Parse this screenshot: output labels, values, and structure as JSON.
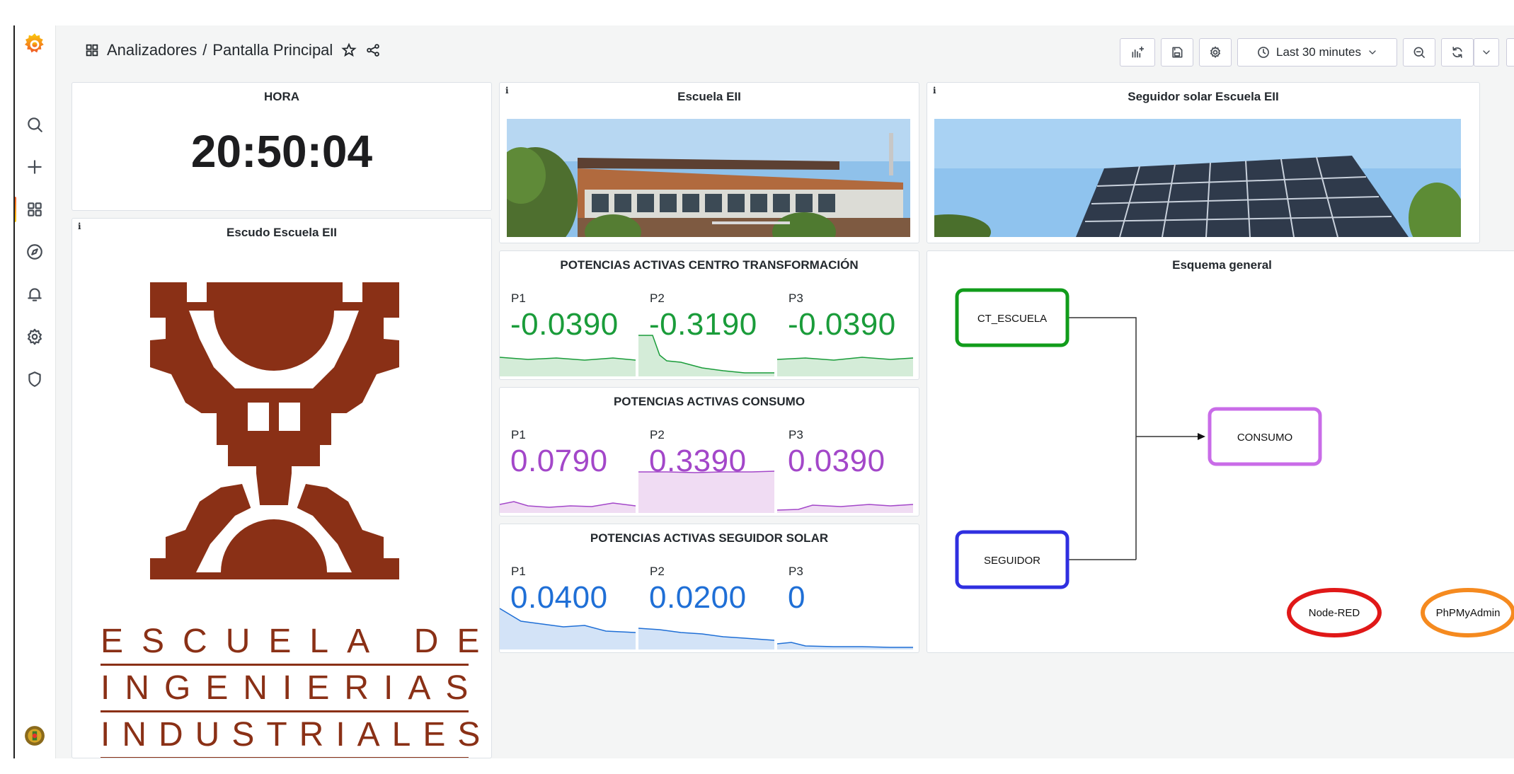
{
  "breadcrumb": {
    "folder": "Analizadores",
    "separator": "/",
    "dashboard": "Pantalla Principal"
  },
  "toolbar": {
    "time_range": "Last 30 minutes"
  },
  "panels": {
    "hora": {
      "title": "HORA",
      "value": "20:50:04"
    },
    "escuela": {
      "title": "Escuela EII",
      "info": "i"
    },
    "seguidor_img": {
      "title": "Seguidor solar Escuela EII",
      "info": "i"
    },
    "escudo": {
      "title": "Escudo Escuela EII",
      "info": "i",
      "logo_lines": [
        "ESCUELA DE",
        "INGENIERIAS",
        "INDUSTRIALES"
      ]
    },
    "ct": {
      "title": "POTENCIAS ACTIVAS CENTRO TRANSFORMACIÓN",
      "color": "#1a9c3a",
      "fill": "#d4ecd8",
      "stats": [
        {
          "label": "P1",
          "value": "-0.0390"
        },
        {
          "label": "P2",
          "value": "-0.3190"
        },
        {
          "label": "P3",
          "value": "-0.0390"
        }
      ]
    },
    "consumo": {
      "title": "POTENCIAS ACTIVAS CONSUMO",
      "color": "#a347c9",
      "fill": "#f0dcf3",
      "stats": [
        {
          "label": "P1",
          "value": "0.0790"
        },
        {
          "label": "P2",
          "value": "0.3390"
        },
        {
          "label": "P3",
          "value": "0.0390"
        }
      ]
    },
    "seguidor": {
      "title": "POTENCIAS ACTIVAS SEGUIDOR SOLAR",
      "color": "#1f6fd6",
      "fill": "#d3e3f7",
      "stats": [
        {
          "label": "P1",
          "value": "0.0400"
        },
        {
          "label": "P2",
          "value": "0.0200"
        },
        {
          "label": "P3",
          "value": "0"
        }
      ]
    },
    "esquema": {
      "title": "Esquema general",
      "nodes": {
        "ct": "CT_ESCUELA",
        "consumo": "CONSUMO",
        "seguidor": "SEGUIDOR",
        "nodered": "Node-RED",
        "phpmyadmin": "PhPMyAdmin"
      },
      "colors": {
        "ct": "#119c1b",
        "consumo": "#c96ce8",
        "seguidor": "#2f2fe0",
        "nodered": "#e01818",
        "phpmyadmin": "#f58a1f"
      }
    }
  },
  "icons": [
    "grafana-logo-icon",
    "search-icon",
    "plus-icon",
    "dashboards-icon",
    "explore-icon",
    "alert-bell-icon",
    "gear-icon",
    "shield-icon",
    "avatar",
    "star-icon",
    "share-icon",
    "add-panel-icon",
    "save-icon",
    "settings-icon",
    "clock-icon",
    "chevron-down-icon",
    "zoom-out-icon",
    "refresh-icon"
  ]
}
